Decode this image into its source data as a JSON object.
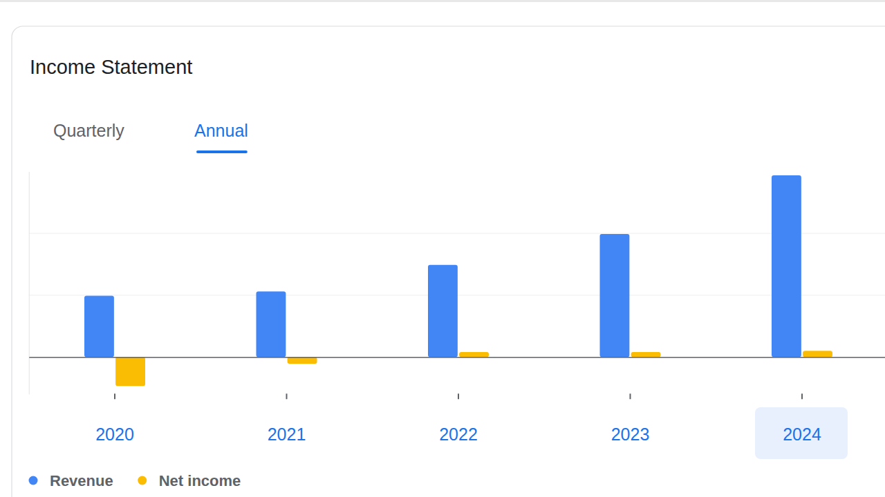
{
  "chart_data": {
    "type": "bar",
    "title": "Income Statement",
    "tabs": [
      "Quarterly",
      "Annual"
    ],
    "categories": [
      "2020",
      "2021",
      "2022",
      "2023",
      "2024"
    ],
    "series": [
      {
        "name": "Revenue",
        "color": "#4285f4",
        "values": [
          0.99,
          1.06,
          1.49,
          1.99,
          2.94
        ]
      },
      {
        "name": "Net income",
        "color": "#fbbc04",
        "values": [
          -0.47,
          -0.11,
          0.08,
          0.08,
          0.1
        ]
      }
    ],
    "ylim": [
      -0.6,
      3.0
    ],
    "yticks": [
      0,
      1,
      2
    ],
    "grid": true,
    "tick_labels": "x",
    "legend": "bottom-left"
  }
}
